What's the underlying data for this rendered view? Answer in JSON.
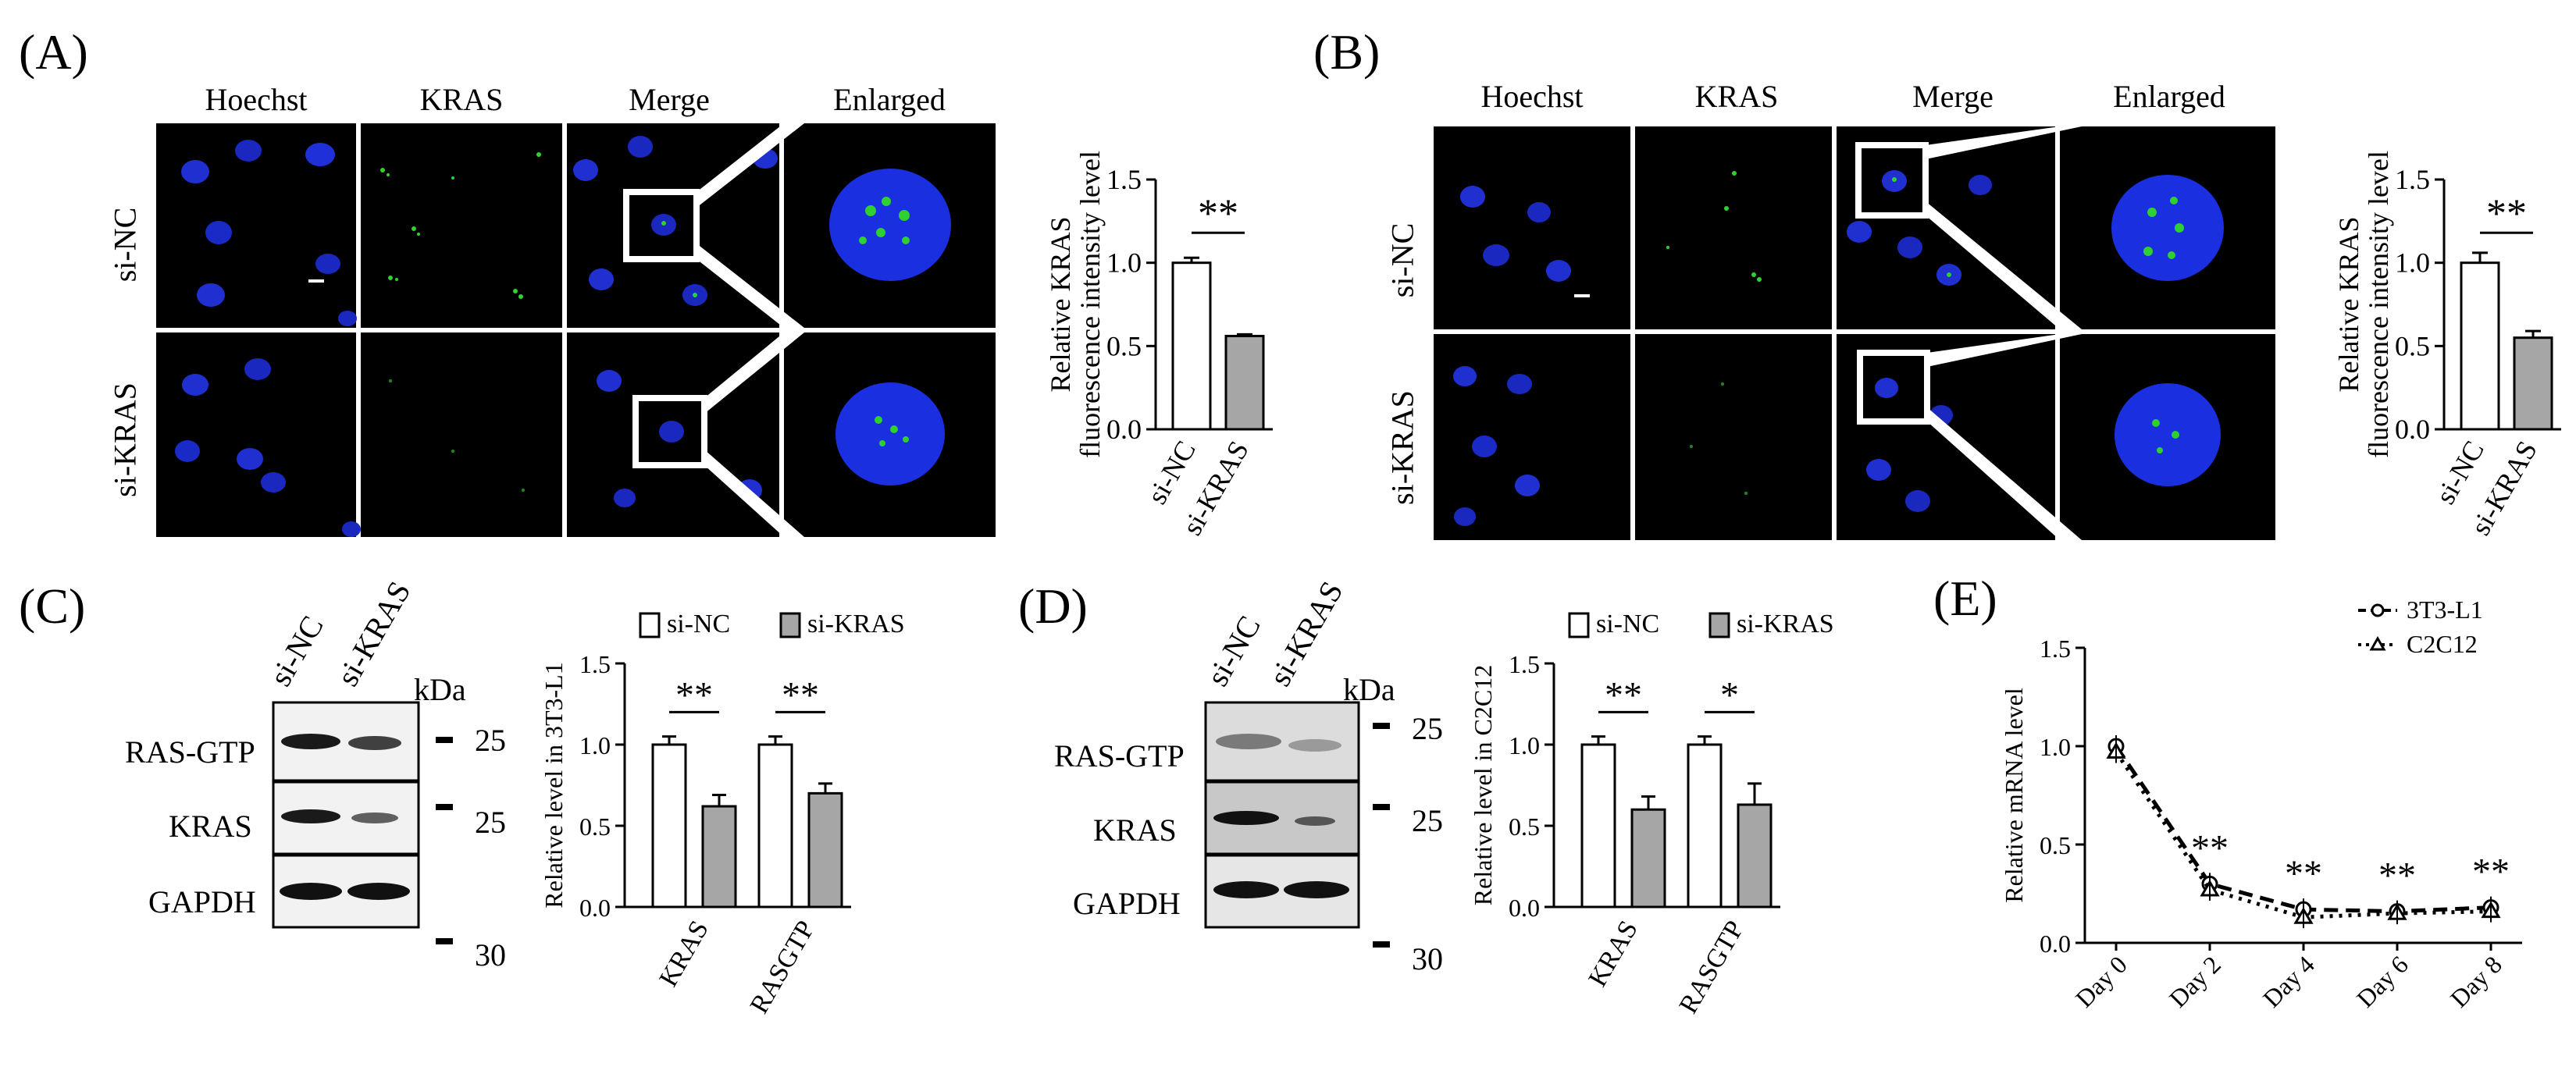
{
  "panels": {
    "A": {
      "letter": "(A)",
      "columns": [
        "Hoechst",
        "KRAS",
        "Merge",
        "Enlarged"
      ],
      "rows": [
        "si-NC",
        "si-KRAS"
      ],
      "chart_data": {
        "type": "bar",
        "ylabel_line1": "Relative KRAS",
        "ylabel_line2": "fluorescence intensity level",
        "categories": [
          "si-NC",
          "si-KRAS"
        ],
        "values": [
          1.0,
          0.56
        ],
        "errors": [
          0.03,
          0.01
        ],
        "ylim": [
          0,
          1.5
        ],
        "yticks": [
          "0.0",
          "0.5",
          "1.0",
          "1.5"
        ],
        "significance": "**",
        "colors": [
          "#ffffff",
          "#a6a6a6"
        ]
      }
    },
    "B": {
      "letter": "(B)",
      "columns": [
        "Hoechst",
        "KRAS",
        "Merge",
        "Enlarged"
      ],
      "rows": [
        "si-NC",
        "si-KRAS"
      ],
      "chart_data": {
        "type": "bar",
        "ylabel_line1": "Relative KRAS",
        "ylabel_line2": "fluorescence intensity level",
        "categories": [
          "si-NC",
          "si-KRAS"
        ],
        "values": [
          1.0,
          0.55
        ],
        "errors": [
          0.06,
          0.04
        ],
        "ylim": [
          0,
          1.5
        ],
        "yticks": [
          "0.0",
          "0.5",
          "1.0",
          "1.5"
        ],
        "significance": "**",
        "colors": [
          "#ffffff",
          "#a6a6a6"
        ]
      }
    },
    "C": {
      "letter": "(C)",
      "lanes": [
        "si-NC",
        "si-KRAS"
      ],
      "kda": "kDa",
      "blots": [
        {
          "label": "RAS-GTP",
          "mw": "25"
        },
        {
          "label": "KRAS",
          "mw": "25"
        },
        {
          "label": "GAPDH",
          "mw": "30"
        }
      ],
      "chart_data": {
        "type": "bar",
        "ylabel": "Relative level in 3T3-L1",
        "categories": [
          "KRAS",
          "RASGTP"
        ],
        "series": [
          {
            "name": "si-NC",
            "values": [
              1.0,
              1.0
            ],
            "errors": [
              0.05,
              0.05
            ],
            "color": "#ffffff"
          },
          {
            "name": "si-KRAS",
            "values": [
              0.62,
              0.7
            ],
            "errors": [
              0.07,
              0.06
            ],
            "color": "#a6a6a6"
          }
        ],
        "ylim": [
          0,
          1.5
        ],
        "yticks": [
          "0.0",
          "0.5",
          "1.0",
          "1.5"
        ],
        "significance": [
          "**",
          "**"
        ]
      }
    },
    "D": {
      "letter": "(D)",
      "lanes": [
        "si-NC",
        "si-KRAS"
      ],
      "kda": "kDa",
      "blots": [
        {
          "label": "RAS-GTP",
          "mw": "25"
        },
        {
          "label": "KRAS",
          "mw": "25"
        },
        {
          "label": "GAPDH",
          "mw": "30"
        }
      ],
      "chart_data": {
        "type": "bar",
        "ylabel": "Relative level in C2C12",
        "categories": [
          "KRAS",
          "RASGTP"
        ],
        "series": [
          {
            "name": "si-NC",
            "values": [
              1.0,
              1.0
            ],
            "errors": [
              0.05,
              0.05
            ],
            "color": "#ffffff"
          },
          {
            "name": "si-KRAS",
            "values": [
              0.6,
              0.63
            ],
            "errors": [
              0.08,
              0.13
            ],
            "color": "#a6a6a6"
          }
        ],
        "ylim": [
          0,
          1.5
        ],
        "yticks": [
          "0.0",
          "0.5",
          "1.0",
          "1.5"
        ],
        "significance": [
          "**",
          "*"
        ]
      }
    },
    "E": {
      "letter": "(E)",
      "chart_data": {
        "type": "line",
        "ylabel": "Relative mRNA level",
        "categories": [
          "Day 0",
          "Day 2",
          "Day 4",
          "Day 6",
          "Day 8"
        ],
        "series": [
          {
            "name": "3T3-L1",
            "values": [
              1.0,
              0.3,
              0.17,
              0.16,
              0.18
            ],
            "style": "dashed"
          },
          {
            "name": "C2C12",
            "values": [
              0.97,
              0.27,
              0.13,
              0.15,
              0.16
            ],
            "style": "dotted"
          }
        ],
        "ylim": [
          0,
          1.5
        ],
        "yticks": [
          "0.0",
          "0.5",
          "1.0",
          "1.5"
        ],
        "significance": [
          "",
          "**",
          "**",
          "**",
          "**"
        ]
      }
    }
  }
}
